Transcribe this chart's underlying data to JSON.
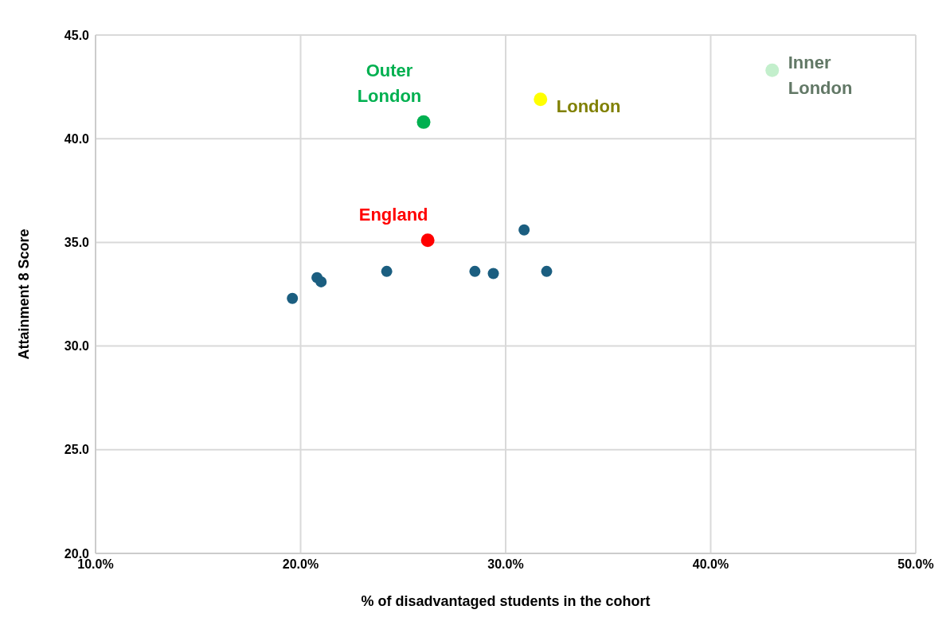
{
  "chart_data": {
    "type": "scatter",
    "xlabel": "% of disadvantaged students in the cohort",
    "ylabel": "Attainment 8 Score",
    "xlim": [
      10,
      50
    ],
    "xticks": [
      {
        "value": 10,
        "label": "10.0%"
      },
      {
        "value": 20,
        "label": "20.0%"
      },
      {
        "value": 30,
        "label": "30.0%"
      },
      {
        "value": 40,
        "label": "40.0%"
      },
      {
        "value": 50,
        "label": "50.0%"
      }
    ],
    "ylim": [
      20,
      45
    ],
    "yticks": [
      {
        "value": 20,
        "label": "20.0"
      },
      {
        "value": 25,
        "label": "25.0"
      },
      {
        "value": 30,
        "label": "30.0"
      },
      {
        "value": 35,
        "label": "35.0"
      },
      {
        "value": 40,
        "label": "40.0"
      },
      {
        "value": 45,
        "label": "45.0"
      }
    ],
    "grid": true,
    "legend": false,
    "marker": "circle",
    "series": [
      {
        "color": "#1b5e80",
        "x": [
          19.6,
          20.8,
          21.0,
          24.2,
          28.5,
          29.4,
          30.9,
          32.0
        ],
        "values": [
          32.3,
          33.3,
          33.1,
          33.6,
          33.6,
          33.5,
          35.6,
          33.6
        ]
      },
      {
        "name": "Outer London",
        "color": "#00b050",
        "x": [
          26.0
        ],
        "values": [
          40.8
        ]
      },
      {
        "name": "London",
        "color": "#ffff00",
        "x": [
          31.7
        ],
        "values": [
          41.9
        ]
      },
      {
        "name": "Inner London",
        "color": "#c3efcc",
        "x": [
          43.0
        ],
        "values": [
          43.3
        ]
      },
      {
        "name": "England",
        "color": "#ff0000",
        "x": [
          26.2
        ],
        "values": [
          35.1
        ]
      }
    ]
  }
}
